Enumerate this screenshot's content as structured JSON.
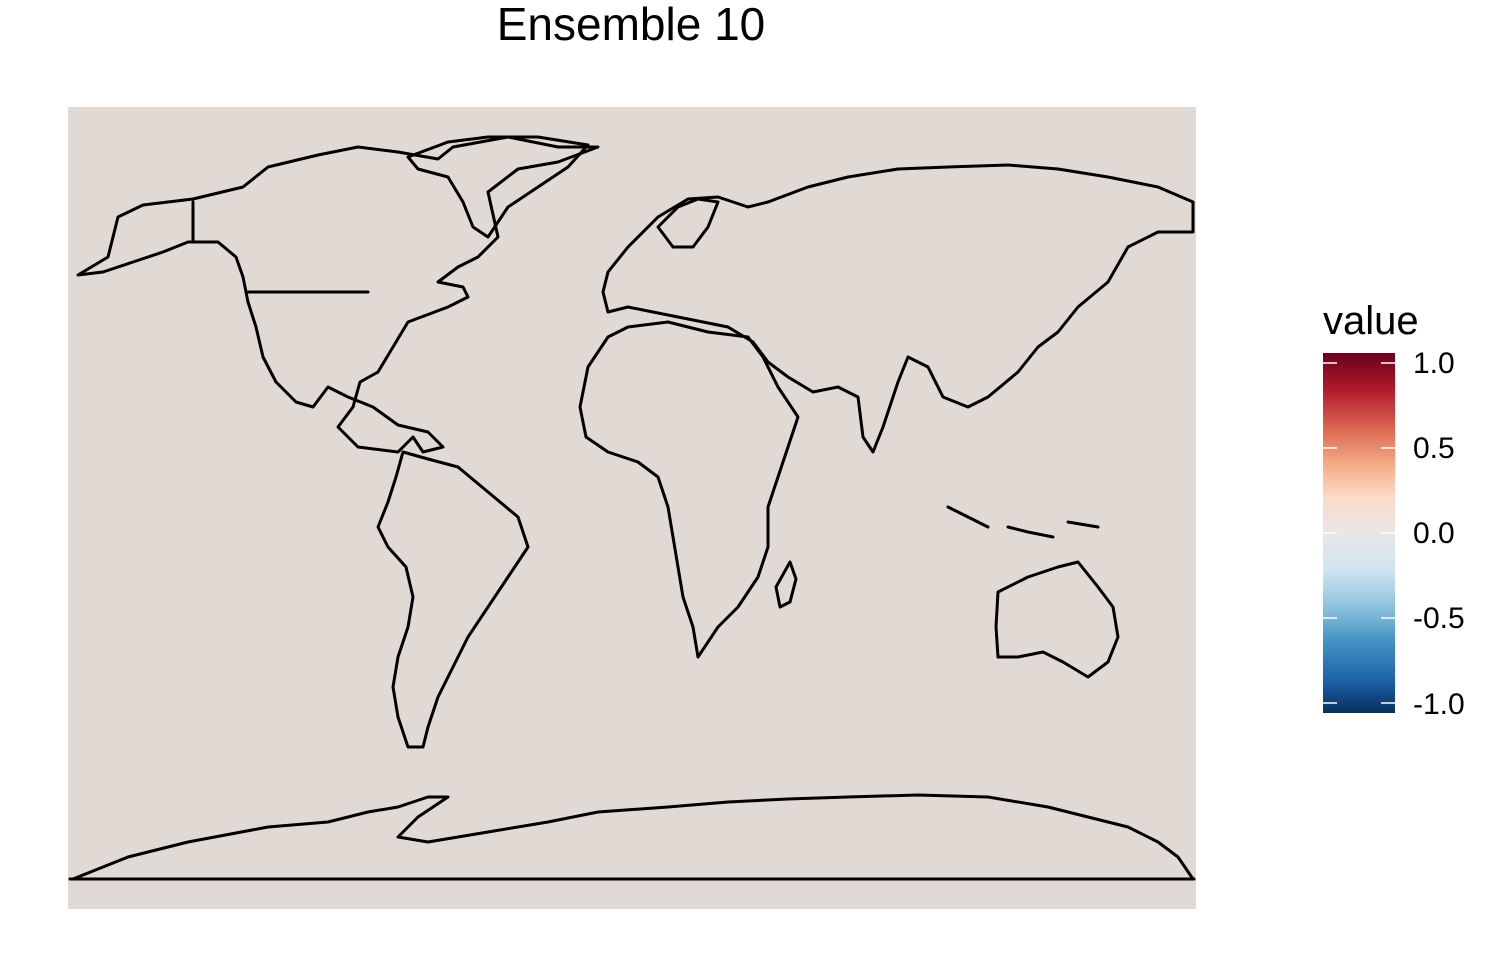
{
  "title": "Ensemble 10",
  "map": {
    "projection": "equirectangular",
    "fill_color": "#e1d9d4",
    "outline_color": "#000000",
    "features": [
      "coastlines",
      "country-borders"
    ]
  },
  "legend": {
    "title": "value",
    "labels": [
      "1.0",
      "0.5",
      "0.0",
      "-0.5",
      "-1.0"
    ],
    "values": [
      1.0,
      0.5,
      0.0,
      -0.5,
      -1.0
    ],
    "colors": [
      "#67001f",
      "#b2182b",
      "#d6604d",
      "#f4a582",
      "#fddbc7",
      "#f7f7f7",
      "#d1e5f0",
      "#92c5de",
      "#4393c3",
      "#2166ac",
      "#053061"
    ]
  }
}
